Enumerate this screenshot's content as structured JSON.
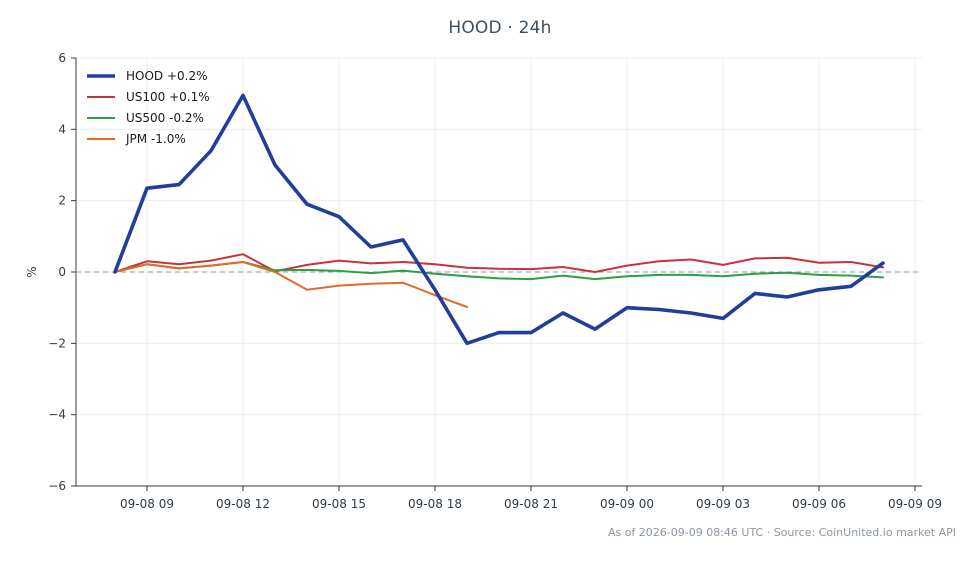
{
  "chart_data": {
    "type": "line",
    "title": "HOOD · 24h",
    "ylabel": "%",
    "xlabel": "",
    "ylim": [
      -6,
      6
    ],
    "yticks": [
      -6,
      -4,
      -2,
      0,
      2,
      4,
      6
    ],
    "ytick_labels": [
      "−6",
      "−4",
      "−2",
      "0",
      "2",
      "4",
      "6"
    ],
    "xticks": [
      "09-08 09",
      "09-08 12",
      "09-08 15",
      "09-08 18",
      "09-08 21",
      "09-09 00",
      "09-09 03",
      "09-09 06",
      "09-09 09"
    ],
    "x": [
      "09-08 08",
      "09-08 09",
      "09-08 10",
      "09-08 11",
      "09-08 12",
      "09-08 13",
      "09-08 14",
      "09-08 15",
      "09-08 16",
      "09-08 17",
      "09-08 18",
      "09-08 19",
      "09-08 20",
      "09-08 21",
      "09-08 22",
      "09-08 23",
      "09-09 00",
      "09-09 01",
      "09-09 02",
      "09-09 03",
      "09-09 04",
      "09-09 05",
      "09-09 06",
      "09-09 07",
      "09-09 08"
    ],
    "grid": true,
    "zero_line": true,
    "legend_position": "top-left",
    "series": [
      {
        "name": "HOOD +0.2%",
        "color": "#1f3f99",
        "values": [
          0.0,
          2.35,
          2.45,
          3.4,
          4.95,
          3.0,
          1.9,
          1.55,
          0.7,
          0.9,
          -0.5,
          -2.0,
          -1.7,
          -1.7,
          -1.15,
          -1.6,
          -1.0,
          -1.05,
          -1.15,
          -1.3,
          -0.6,
          -0.7,
          -0.5,
          -0.4,
          0.25
        ]
      },
      {
        "name": "US100 +0.1%",
        "color": "#c8323a",
        "values": [
          0.0,
          0.3,
          0.22,
          0.32,
          0.5,
          0.02,
          0.2,
          0.32,
          0.24,
          0.28,
          0.22,
          0.12,
          0.09,
          0.08,
          0.14,
          0.0,
          0.18,
          0.3,
          0.35,
          0.2,
          0.38,
          0.4,
          0.26,
          0.28,
          0.13
        ]
      },
      {
        "name": "US500 -0.2%",
        "color": "#2ba044",
        "values": [
          0.0,
          0.22,
          0.1,
          0.18,
          0.28,
          0.05,
          0.06,
          0.03,
          -0.03,
          0.04,
          -0.05,
          -0.12,
          -0.18,
          -0.2,
          -0.1,
          -0.2,
          -0.12,
          -0.08,
          -0.08,
          -0.12,
          -0.05,
          -0.02,
          -0.08,
          -0.1,
          -0.15
        ]
      },
      {
        "name": "JPM -1.0%",
        "color": "#e06c2a",
        "values": [
          0.0,
          0.22,
          0.1,
          0.18,
          0.28,
          0.0,
          -0.5,
          -0.38,
          -0.33,
          -0.3,
          -0.65,
          -0.98,
          null,
          null,
          null,
          null,
          null,
          null,
          null,
          null,
          null,
          null,
          null,
          null,
          null
        ]
      }
    ]
  },
  "footer": "As of 2026-09-09 08:46 UTC · Source: CoinUnited.io market API"
}
